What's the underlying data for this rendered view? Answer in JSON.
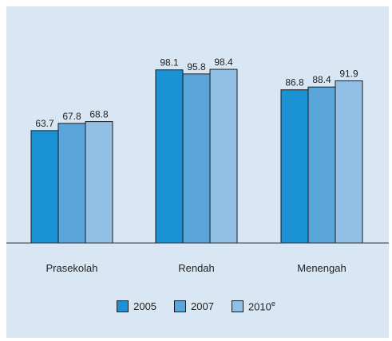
{
  "chart_data": {
    "type": "bar",
    "categories": [
      "Prasekolah",
      "Rendah",
      "Menengah"
    ],
    "series": [
      {
        "name": "2005",
        "values": [
          63.7,
          98.1,
          86.8
        ],
        "color": "#1a92d4"
      },
      {
        "name": "2007",
        "values": [
          67.8,
          95.8,
          88.4
        ],
        "color": "#5aa6db"
      },
      {
        "name": "2010e",
        "label_main": "2010",
        "label_sup": "e",
        "values": [
          68.8,
          98.4,
          91.9
        ],
        "color": "#92bfe6"
      }
    ],
    "value_labels": [
      [
        "63.7",
        "67.8",
        "68.8"
      ],
      [
        "98.1",
        "95.8",
        "98.4"
      ],
      [
        "86.8",
        "88.4",
        "91.9"
      ]
    ],
    "ylim": [
      0,
      100
    ],
    "grid": false,
    "legend_position": "bottom",
    "title": "",
    "xlabel": "",
    "ylabel": ""
  }
}
